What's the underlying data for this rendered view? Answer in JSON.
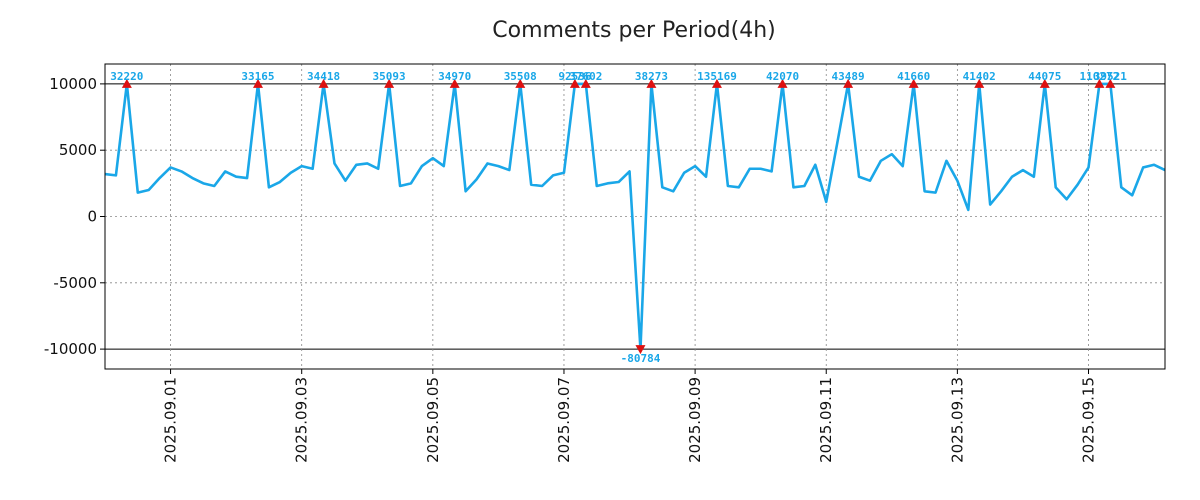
{
  "chart_data": {
    "type": "line",
    "title": "Comments per Period(4h)",
    "xlabel": "",
    "ylabel": "",
    "ylim": [
      -11500,
      11500
    ],
    "xlim": [
      0,
      97
    ],
    "yticks": [
      10000,
      5000,
      0,
      -5000,
      -10000
    ],
    "ytick_labels": [
      "10000",
      "5000",
      "0",
      "-5000",
      "-10000"
    ],
    "clip_high": 10000,
    "clip_low": -10000,
    "xticks": [
      {
        "x": 6,
        "label": "2025.09.01"
      },
      {
        "x": 18,
        "label": "2025.09.03"
      },
      {
        "x": 30,
        "label": "2025.09.05"
      },
      {
        "x": 42,
        "label": "2025.09.07"
      },
      {
        "x": 54,
        "label": "2025.09.09"
      },
      {
        "x": 66,
        "label": "2025.09.11"
      },
      {
        "x": 78,
        "label": "2025.09.13"
      },
      {
        "x": 90,
        "label": "2025.09.15"
      }
    ],
    "series": [
      {
        "name": "comments",
        "color": "#1aa7e8",
        "values": [
          3200,
          3100,
          10000,
          1800,
          2000,
          2900,
          3700,
          3400,
          2900,
          2500,
          2300,
          3400,
          3000,
          2900,
          10000,
          2200,
          2600,
          3300,
          3800,
          3600,
          10000,
          4000,
          2700,
          3900,
          4000,
          3600,
          10000,
          2300,
          2500,
          3800,
          4400,
          3800,
          10000,
          1900,
          2800,
          4000,
          3800,
          3500,
          10000,
          2400,
          2300,
          3100,
          3300,
          10000,
          10000,
          2300,
          2500,
          2600,
          3400,
          -10000,
          10000,
          2200,
          1900,
          3300,
          3800,
          3000,
          10000,
          2300,
          2200,
          3600,
          3600,
          3400,
          10000,
          2200,
          2300,
          3900,
          1100,
          5500,
          10000,
          3000,
          2700,
          4200,
          4700,
          3800,
          10000,
          1900,
          1800,
          4200,
          2700,
          500,
          10000,
          900,
          1900,
          3000,
          3500,
          3000,
          10000,
          2200,
          1300,
          2400,
          3700,
          10000,
          10000,
          2200,
          1600,
          3700,
          3900,
          3500
        ]
      }
    ],
    "peak_markers": [
      {
        "x": 2,
        "label": "32220",
        "dir": "up"
      },
      {
        "x": 14,
        "label": "33165",
        "dir": "up"
      },
      {
        "x": 20,
        "label": "34418",
        "dir": "up"
      },
      {
        "x": 26,
        "label": "35093",
        "dir": "up"
      },
      {
        "x": 32,
        "label": "34970",
        "dir": "up"
      },
      {
        "x": 38,
        "label": "35508",
        "dir": "up"
      },
      {
        "x": 43,
        "label": "92536",
        "dir": "up"
      },
      {
        "x": 44,
        "label": "37602",
        "dir": "up"
      },
      {
        "x": 49,
        "label": "-80784",
        "dir": "down"
      },
      {
        "x": 50,
        "label": "38273",
        "dir": "up"
      },
      {
        "x": 56,
        "label": "135169",
        "dir": "up"
      },
      {
        "x": 62,
        "label": "42070",
        "dir": "up"
      },
      {
        "x": 68,
        "label": "43489",
        "dir": "up"
      },
      {
        "x": 74,
        "label": "41660",
        "dir": "up"
      },
      {
        "x": 80,
        "label": "41402",
        "dir": "up"
      },
      {
        "x": 86,
        "label": "44075",
        "dir": "up"
      },
      {
        "x": 91,
        "label": "110272",
        "dir": "up"
      },
      {
        "x": 92,
        "label": "39521",
        "dir": "up"
      }
    ],
    "marker_color": "#dd1111",
    "label_color": "#1aa7e8",
    "grid": true
  }
}
